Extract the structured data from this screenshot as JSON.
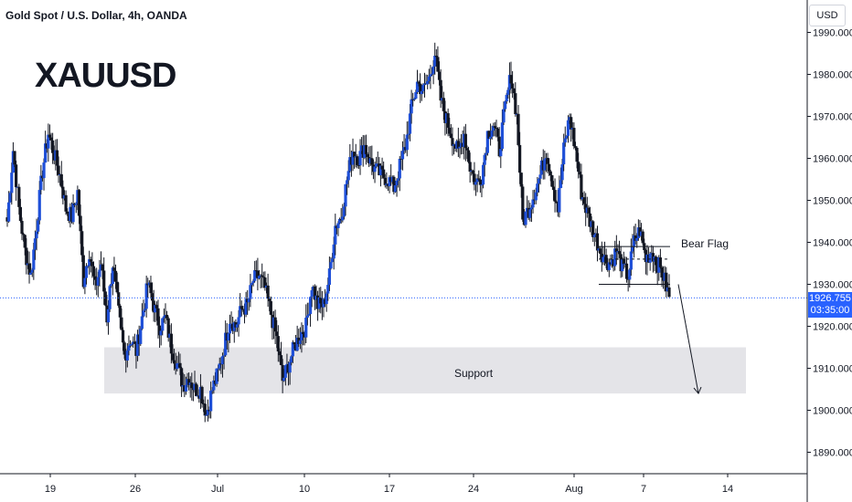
{
  "header": {
    "title": "Gold Spot / U.S. Dollar, 4h, OANDA"
  },
  "symbol": "XAUUSD",
  "currency_button": "USD",
  "last_price": "1926.755",
  "countdown": "03:35:00",
  "annotations": {
    "bear_flag": "Bear Flag",
    "support": "Support"
  },
  "colors": {
    "up": "#1e4fd8",
    "down": "#131722",
    "support_zone": "#e4e4e8",
    "price_line": "#2962ff",
    "price_tag": "#2962ff"
  },
  "chart_data": {
    "type": "candlestick",
    "title": "Gold Spot / U.S. Dollar, 4h, OANDA",
    "y_ticks": [
      "1890.000",
      "1900.000",
      "1910.000",
      "1920.000",
      "1930.000",
      "1940.000",
      "1950.000",
      "1960.000",
      "1970.000",
      "1980.000",
      "1990.000"
    ],
    "x_ticks": [
      "19",
      "26",
      "Jul",
      "10",
      "17",
      "24",
      "Aug",
      "7",
      "14"
    ],
    "ylim": [
      1886,
      1991
    ],
    "support_zone": [
      1904,
      1915
    ],
    "bear_flag_channel": {
      "upper": 1939,
      "lower": 1930,
      "tail_top": 1936
    },
    "forecast_arrow": {
      "from": 1930,
      "to": 1904
    },
    "close_path": [
      1945,
      1962,
      1948,
      1938,
      1932,
      1944,
      1957,
      1966,
      1961,
      1956,
      1948,
      1946,
      1952,
      1931,
      1938,
      1929,
      1935,
      1922,
      1935,
      1923,
      1913,
      1917,
      1914,
      1922,
      1930,
      1925,
      1920,
      1922,
      1915,
      1911,
      1906,
      1908,
      1905,
      1905,
      1899,
      1905,
      1909,
      1915,
      1922,
      1920,
      1924,
      1925,
      1931,
      1932,
      1929,
      1923,
      1917,
      1907,
      1911,
      1915,
      1918,
      1920,
      1930,
      1925,
      1925,
      1932,
      1944,
      1946,
      1955,
      1962,
      1960,
      1963,
      1959,
      1957,
      1956,
      1955,
      1953,
      1958,
      1963,
      1972,
      1978,
      1976,
      1979,
      1985,
      1974,
      1969,
      1965,
      1961,
      1966,
      1958,
      1954,
      1956,
      1966,
      1968,
      1962,
      1972,
      1980,
      1970,
      1945,
      1948,
      1952,
      1956,
      1962,
      1955,
      1948,
      1962,
      1970,
      1962,
      1952,
      1947,
      1943,
      1939,
      1936,
      1935,
      1938,
      1934,
      1932,
      1940,
      1943,
      1936,
      1938,
      1935,
      1932,
      1927
    ]
  }
}
